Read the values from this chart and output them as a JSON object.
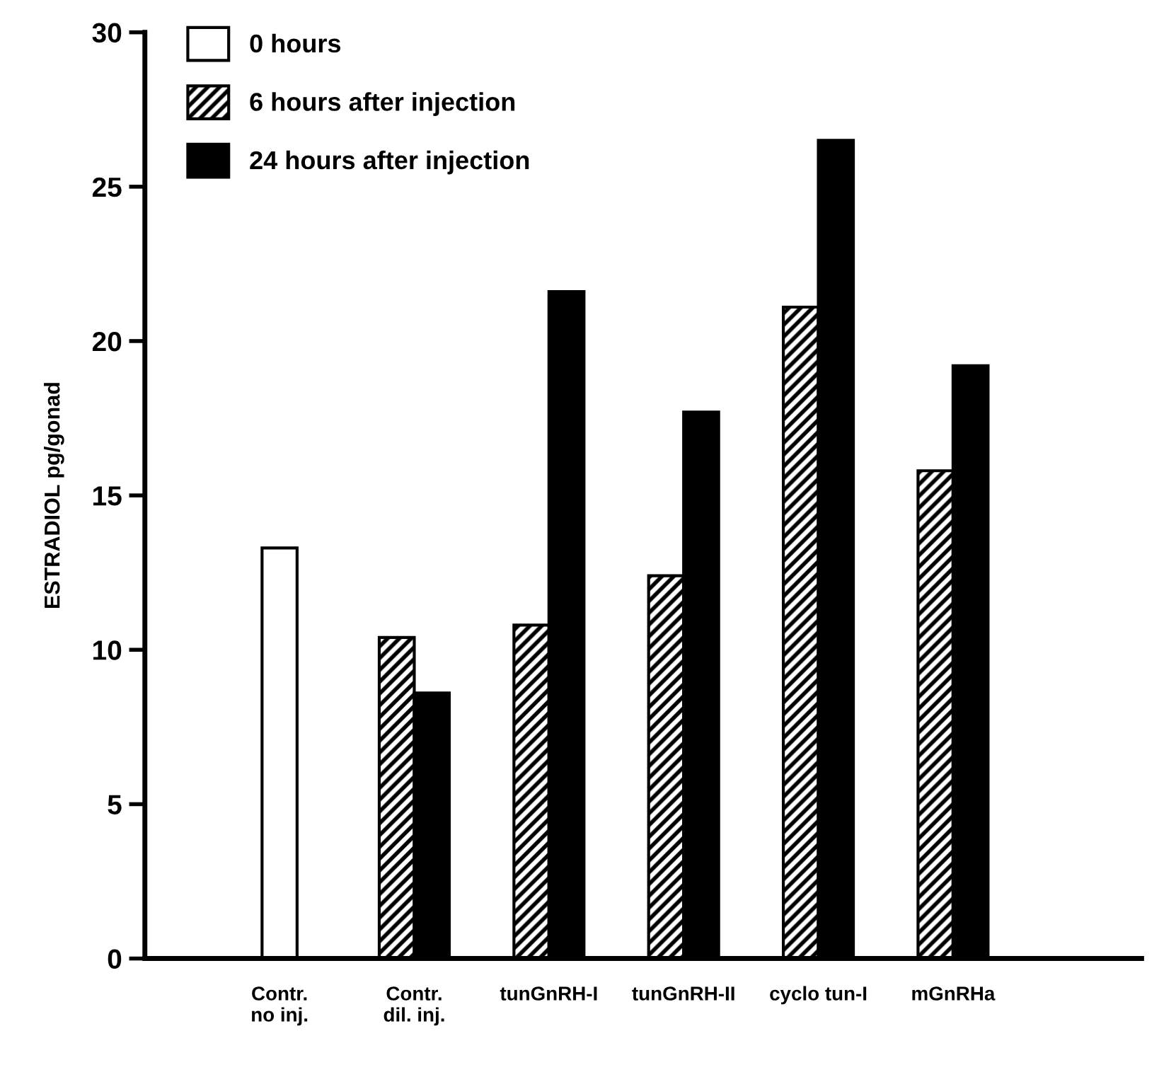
{
  "chart_data": {
    "type": "bar",
    "ylabel": "ESTRADIOL pg/gonad",
    "categories": [
      "Contr.\nno inj.",
      "Contr.\ndil. inj.",
      "tunGnRH-I",
      "tunGnRH-II",
      "cyclo tun-I",
      "mGnRHa"
    ],
    "series": [
      {
        "name": "0 hours",
        "color": "#ffffff",
        "values": [
          13.3,
          null,
          null,
          null,
          null,
          null
        ]
      },
      {
        "name": "6 hours after injection",
        "color": "#000000",
        "values": [
          null,
          10.4,
          10.8,
          12.4,
          21.1,
          15.8
        ]
      },
      {
        "name": "24 hours after injection",
        "color": "#000000",
        "values": [
          null,
          8.6,
          21.6,
          17.7,
          26.5,
          19.2
        ]
      }
    ],
    "ylim": [
      0,
      30
    ],
    "yticks": [
      0,
      5,
      10,
      15,
      20,
      25,
      30
    ],
    "grid": false,
    "legend": "top left"
  }
}
